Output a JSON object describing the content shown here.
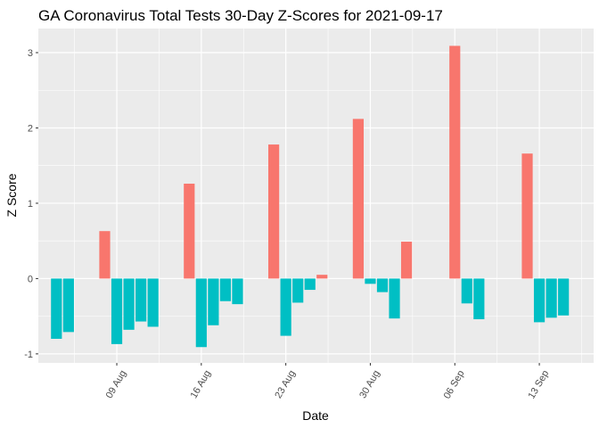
{
  "chart_data": {
    "type": "bar",
    "title": "GA Coronavirus Total Tests 30-Day Z-Scores for 2021-09-17",
    "xlabel": "Date",
    "ylabel": "Z Score",
    "ylim": [
      -1.12,
      3.32
    ],
    "yticks": [
      -1,
      0,
      1,
      2,
      3
    ],
    "xticks": [
      {
        "label": "09 Aug",
        "day": 9
      },
      {
        "label": "16 Aug",
        "day": 16
      },
      {
        "label": "23 Aug",
        "day": 23
      },
      {
        "label": "30 Aug",
        "day": 30
      },
      {
        "label": "06 Sep",
        "day": 37
      },
      {
        "label": "13 Sep",
        "day": 44
      }
    ],
    "xlim_days": [
      2.5,
      48.5
    ],
    "colors": {
      "positive": "#F8766D",
      "negative": "#00BFC4",
      "panel": "#EBEBEB",
      "grid_major": "#FFFFFF",
      "tick": "#333333"
    },
    "bars": [
      {
        "day": 4,
        "value": -0.8
      },
      {
        "day": 5,
        "value": -0.71
      },
      {
        "day": 8,
        "value": 0.63
      },
      {
        "day": 9,
        "value": -0.87
      },
      {
        "day": 10,
        "value": -0.68
      },
      {
        "day": 11,
        "value": -0.57
      },
      {
        "day": 12,
        "value": -0.64
      },
      {
        "day": 15,
        "value": 1.26
      },
      {
        "day": 16,
        "value": -0.91
      },
      {
        "day": 17,
        "value": -0.62
      },
      {
        "day": 18,
        "value": -0.3
      },
      {
        "day": 19,
        "value": -0.34
      },
      {
        "day": 22,
        "value": 1.78
      },
      {
        "day": 23,
        "value": -0.76
      },
      {
        "day": 24,
        "value": -0.32
      },
      {
        "day": 25,
        "value": -0.15
      },
      {
        "day": 26,
        "value": 0.05
      },
      {
        "day": 29,
        "value": 2.12
      },
      {
        "day": 30,
        "value": -0.07
      },
      {
        "day": 31,
        "value": -0.18
      },
      {
        "day": 32,
        "value": -0.53
      },
      {
        "day": 33,
        "value": 0.49
      },
      {
        "day": 37,
        "value": 3.09
      },
      {
        "day": 38,
        "value": -0.33
      },
      {
        "day": 39,
        "value": -0.54
      },
      {
        "day": 43,
        "value": 1.66
      },
      {
        "day": 44,
        "value": -0.58
      },
      {
        "day": 45,
        "value": -0.52
      },
      {
        "day": 46,
        "value": -0.49
      }
    ]
  }
}
